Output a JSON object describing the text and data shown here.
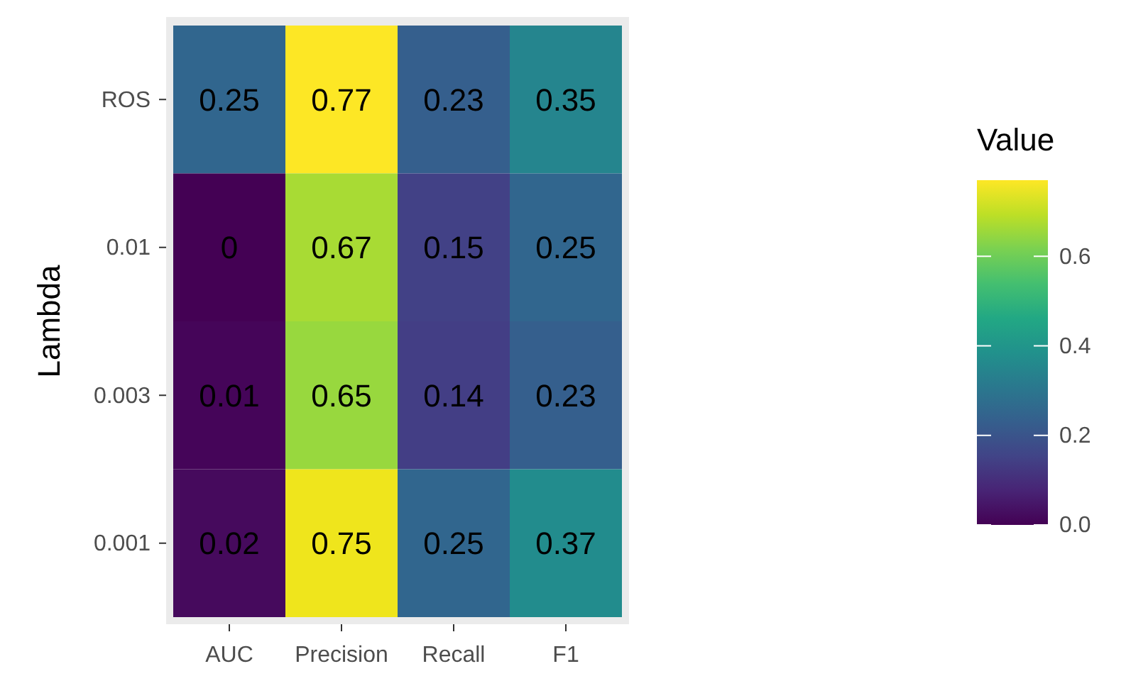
{
  "chart_data": {
    "type": "heatmap",
    "ylabel": "Lambda",
    "clabel": "Value",
    "categories": [
      "AUC",
      "Precision",
      "Recall",
      "F1"
    ],
    "y_categories": [
      "ROS",
      "0.01",
      "0.003",
      "0.001"
    ],
    "cells": [
      [
        0.25,
        0.77,
        0.23,
        0.35
      ],
      [
        0,
        0.67,
        0.15,
        0.25
      ],
      [
        0.01,
        0.65,
        0.14,
        0.23
      ],
      [
        0.02,
        0.75,
        0.25,
        0.37
      ]
    ],
    "data_labels": true,
    "clim": [
      0,
      0.77
    ],
    "cticks": [
      {
        "value": 0,
        "label": "0.0"
      },
      {
        "value": 0.2,
        "label": "0.2"
      },
      {
        "value": 0.4,
        "label": "0.4"
      },
      {
        "value": 0.6,
        "label": "0.6"
      }
    ]
  }
}
